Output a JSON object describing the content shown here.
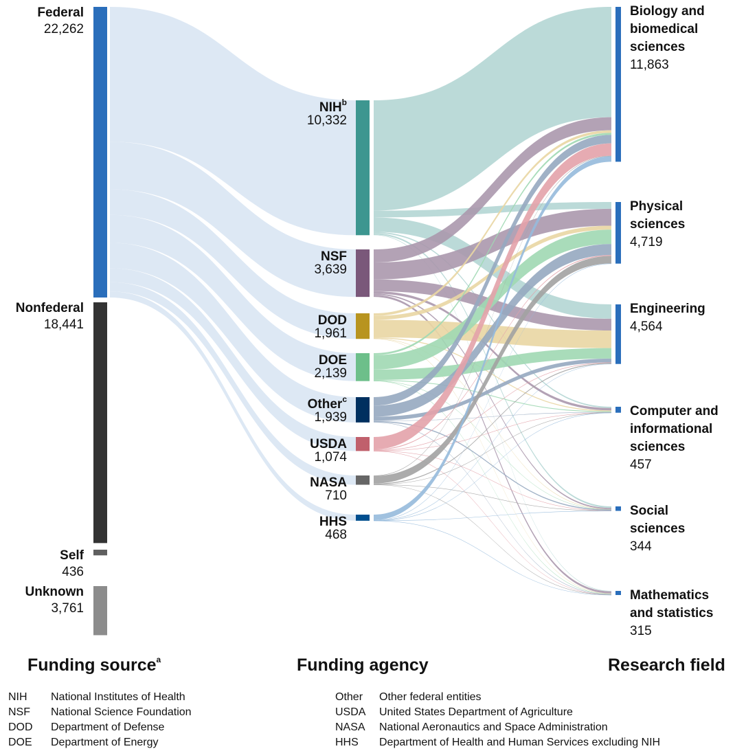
{
  "chart_data": {
    "type": "sankey",
    "sources": [
      {
        "name": "Federal",
        "value": 22262,
        "value_label": "22,262",
        "color": "#2a6ebb"
      },
      {
        "name": "Nonfederal",
        "value": 18441,
        "value_label": "18,441",
        "color": "#333333"
      },
      {
        "name": "Self",
        "value": 436,
        "value_label": "436",
        "color": "#5f5f5f"
      },
      {
        "name": "Unknown",
        "value": 3761,
        "value_label": "3,761",
        "color": "#8c8c8c"
      }
    ],
    "federal_link_color": "#dde8f4",
    "agencies": [
      {
        "name": "NIH",
        "note": "b",
        "value": 10332,
        "value_label": "10,332",
        "color": "#3d9690",
        "link_color": "#b4d6d4"
      },
      {
        "name": "NSF",
        "value": 3639,
        "value_label": "3,639",
        "color": "#7a587a",
        "link_color": "#ab98ad"
      },
      {
        "name": "DOD",
        "value": 1961,
        "value_label": "1,961",
        "color": "#b8941f",
        "link_color": "#e9d6a3"
      },
      {
        "name": "DOE",
        "value": 2139,
        "value_label": "2,139",
        "color": "#6dbf8a",
        "link_color": "#a0d8b3"
      },
      {
        "name": "Other",
        "note": "c",
        "value": 1939,
        "value_label": "1,939",
        "color": "#00305f",
        "link_color": "#96a8c0"
      },
      {
        "name": "USDA",
        "value": 1074,
        "value_label": "1,074",
        "color": "#c0606c",
        "link_color": "#e3a2aa"
      },
      {
        "name": "NASA",
        "value": 710,
        "value_label": "710",
        "color": "#666666",
        "link_color": "#a2a2a2"
      },
      {
        "name": "HHS",
        "value": 468,
        "value_label": "468",
        "color": "#004f8f",
        "link_color": "#96badb"
      }
    ],
    "field_color": "#2a6ebb",
    "fields": [
      {
        "lines": [
          "Biology and",
          "biomedical",
          "sciences"
        ],
        "value": 11863,
        "value_label": "11,863"
      },
      {
        "lines": [
          "Physical",
          "sciences"
        ],
        "value": 4719,
        "value_label": "4,719"
      },
      {
        "lines": [
          "Engineering"
        ],
        "value": 4564,
        "value_label": "4,564"
      },
      {
        "lines": [
          "Computer and",
          "informational",
          "sciences"
        ],
        "value": 457,
        "value_label": "457"
      },
      {
        "lines": [
          "Social",
          "sciences"
        ],
        "value": 344,
        "value_label": "344"
      },
      {
        "lines": [
          "Mathematics",
          "and statistics"
        ],
        "value": 315,
        "value_label": "315"
      }
    ],
    "flows": [
      [
        8453,
        519,
        1100,
        100,
        120,
        40
      ],
      [
        1000,
        1300,
        900,
        180,
        100,
        159
      ],
      [
        200,
        300,
        1350,
        70,
        11,
        30
      ],
      [
        150,
        1100,
        800,
        60,
        4,
        25
      ],
      [
        650,
        850,
        300,
        30,
        79,
        30
      ],
      [
        950,
        60,
        40,
        4,
        15,
        5
      ],
      [
        40,
        580,
        60,
        10,
        5,
        15
      ],
      [
        420,
        10,
        14,
        3,
        10,
        11
      ]
    ],
    "columns": [
      {
        "title": "Funding source",
        "note": "a"
      },
      {
        "title": "Funding agency"
      },
      {
        "title": "Research field"
      }
    ],
    "legend": [
      [
        "NIH",
        "National Institutes of Health"
      ],
      [
        "NSF",
        "National Science Foundation"
      ],
      [
        "DOD",
        "Department of Defense"
      ],
      [
        "DOE",
        "Department of Energy"
      ],
      [
        "Other",
        "Other federal entities"
      ],
      [
        "USDA",
        "United States Department of Agriculture"
      ],
      [
        "NASA",
        "National Aeronautics and Space Administration"
      ],
      [
        "HHS",
        "Department of Health and Human Services excluding NIH"
      ]
    ]
  }
}
